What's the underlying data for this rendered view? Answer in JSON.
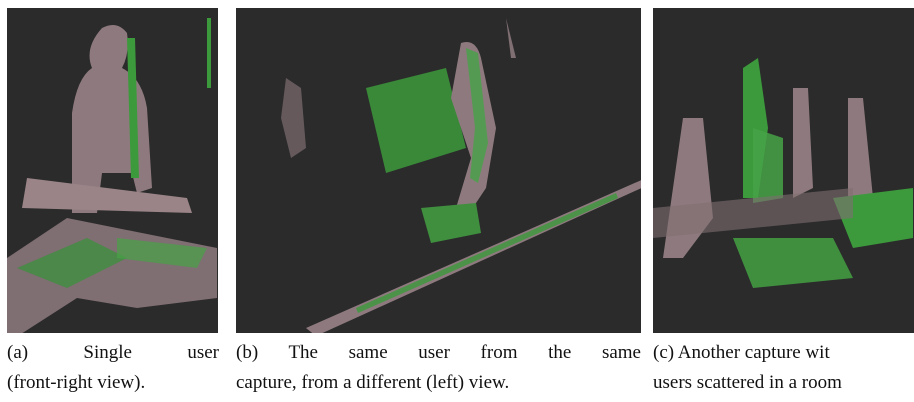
{
  "figures": [
    {
      "caption_lines": [
        "(a) Single user",
        "(front-right view)."
      ]
    },
    {
      "caption_lines": [
        "(b) The same user from the same",
        "capture, from a different (left) view."
      ]
    },
    {
      "caption_lines": [
        "(c) Another capture wit",
        "users scattered in a room"
      ]
    }
  ]
}
